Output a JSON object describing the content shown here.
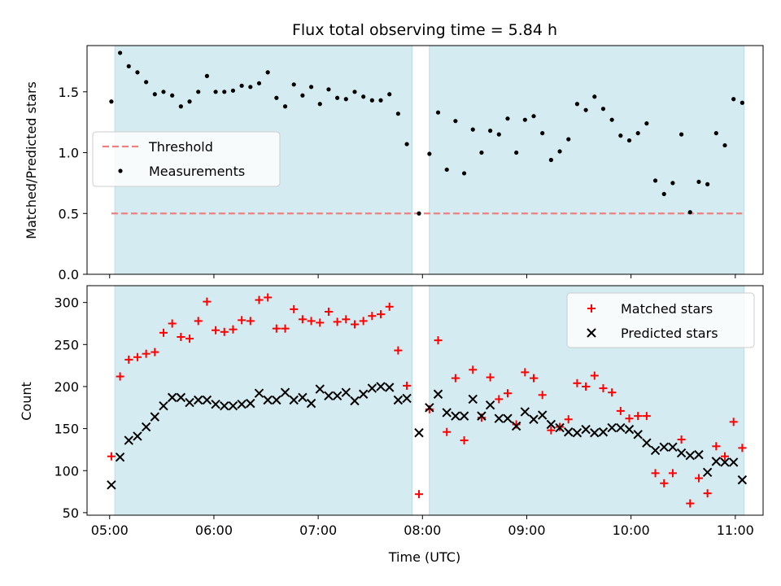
{
  "chart_data": {
    "title": "Flux total observing time = 5.84 h",
    "xlabel": "Time (UTC)",
    "x_ticks": [
      "05:00",
      "06:00",
      "07:00",
      "08:00",
      "09:00",
      "10:00",
      "11:00"
    ],
    "x_range": [
      "04:47",
      "11:16"
    ],
    "observing_windows": [
      {
        "start": "05:03",
        "end": "07:54"
      },
      {
        "start": "08:04",
        "end": "11:05"
      }
    ],
    "colors": {
      "window": "#d4ebf1",
      "threshold": "#f08080",
      "measurements": "#000000",
      "matched": "#ff0000",
      "predicted": "#000000"
    },
    "panels": [
      {
        "type": "scatter",
        "ylabel": "Matched/Predicted stars",
        "ylim": [
          0,
          1.88
        ],
        "y_ticks": [
          "0.0",
          "0.5",
          "1.0",
          "1.5"
        ],
        "y_tick_values": [
          0,
          0.5,
          1.0,
          1.5
        ],
        "legend_position": "center-left",
        "threshold": {
          "name": "Threshold",
          "value": 0.5
        },
        "series": [
          {
            "name": "Measurements",
            "marker": "dot",
            "points": [
              [
                "05:01",
                1.42
              ],
              [
                "05:06",
                1.82
              ],
              [
                "05:11",
                1.71
              ],
              [
                "05:16",
                1.66
              ],
              [
                "05:21",
                1.58
              ],
              [
                "05:26",
                1.48
              ],
              [
                "05:31",
                1.5
              ],
              [
                "05:36",
                1.47
              ],
              [
                "05:41",
                1.38
              ],
              [
                "05:46",
                1.42
              ],
              [
                "05:51",
                1.5
              ],
              [
                "05:56",
                1.63
              ],
              [
                "06:01",
                1.5
              ],
              [
                "06:06",
                1.5
              ],
              [
                "06:11",
                1.51
              ],
              [
                "06:16",
                1.55
              ],
              [
                "06:21",
                1.54
              ],
              [
                "06:26",
                1.57
              ],
              [
                "06:31",
                1.66
              ],
              [
                "06:36",
                1.45
              ],
              [
                "06:41",
                1.38
              ],
              [
                "06:46",
                1.56
              ],
              [
                "06:51",
                1.47
              ],
              [
                "06:56",
                1.54
              ],
              [
                "07:01",
                1.4
              ],
              [
                "07:06",
                1.52
              ],
              [
                "07:11",
                1.45
              ],
              [
                "07:16",
                1.44
              ],
              [
                "07:21",
                1.5
              ],
              [
                "07:26",
                1.46
              ],
              [
                "07:31",
                1.43
              ],
              [
                "07:36",
                1.43
              ],
              [
                "07:41",
                1.48
              ],
              [
                "07:46",
                1.32
              ],
              [
                "07:51",
                1.07
              ],
              [
                "07:58",
                0.5
              ],
              [
                "08:04",
                0.99
              ],
              [
                "08:09",
                1.33
              ],
              [
                "08:14",
                0.86
              ],
              [
                "08:19",
                1.26
              ],
              [
                "08:24",
                0.83
              ],
              [
                "08:29",
                1.19
              ],
              [
                "08:34",
                1.0
              ],
              [
                "08:39",
                1.18
              ],
              [
                "08:44",
                1.15
              ],
              [
                "08:49",
                1.28
              ],
              [
                "08:54",
                1.0
              ],
              [
                "08:59",
                1.27
              ],
              [
                "09:04",
                1.3
              ],
              [
                "09:09",
                1.16
              ],
              [
                "09:14",
                0.94
              ],
              [
                "09:19",
                1.01
              ],
              [
                "09:24",
                1.11
              ],
              [
                "09:29",
                1.4
              ],
              [
                "09:34",
                1.35
              ],
              [
                "09:39",
                1.46
              ],
              [
                "09:44",
                1.36
              ],
              [
                "09:49",
                1.27
              ],
              [
                "09:54",
                1.14
              ],
              [
                "09:59",
                1.1
              ],
              [
                "10:04",
                1.16
              ],
              [
                "10:09",
                1.24
              ],
              [
                "10:14",
                0.77
              ],
              [
                "10:19",
                0.66
              ],
              [
                "10:24",
                0.75
              ],
              [
                "10:29",
                1.15
              ],
              [
                "10:34",
                0.51
              ],
              [
                "10:39",
                0.76
              ],
              [
                "10:44",
                0.74
              ],
              [
                "10:49",
                1.16
              ],
              [
                "10:54",
                1.06
              ],
              [
                "10:59",
                1.44
              ],
              [
                "11:04",
                1.41
              ]
            ]
          }
        ]
      },
      {
        "type": "scatter",
        "ylabel": "Count",
        "ylim": [
          47,
          320
        ],
        "y_ticks": [
          "50",
          "100",
          "150",
          "200",
          "250",
          "300"
        ],
        "y_tick_values": [
          50,
          100,
          150,
          200,
          250,
          300
        ],
        "legend_position": "upper-right",
        "series": [
          {
            "name": "Matched stars",
            "marker": "plus",
            "points": [
              [
                "05:01",
                117
              ],
              [
                "05:06",
                212
              ],
              [
                "05:11",
                232
              ],
              [
                "05:16",
                235
              ],
              [
                "05:21",
                239
              ],
              [
                "05:26",
                241
              ],
              [
                "05:31",
                264
              ],
              [
                "05:36",
                275
              ],
              [
                "05:41",
                259
              ],
              [
                "05:46",
                257
              ],
              [
                "05:51",
                278
              ],
              [
                "05:56",
                301
              ],
              [
                "06:01",
                267
              ],
              [
                "06:06",
                265
              ],
              [
                "06:11",
                268
              ],
              [
                "06:16",
                279
              ],
              [
                "06:21",
                278
              ],
              [
                "06:26",
                303
              ],
              [
                "06:31",
                306
              ],
              [
                "06:36",
                269
              ],
              [
                "06:41",
                269
              ],
              [
                "06:46",
                292
              ],
              [
                "06:51",
                280
              ],
              [
                "06:56",
                278
              ],
              [
                "07:01",
                276
              ],
              [
                "07:06",
                289
              ],
              [
                "07:11",
                277
              ],
              [
                "07:16",
                280
              ],
              [
                "07:21",
                274
              ],
              [
                "07:26",
                278
              ],
              [
                "07:31",
                284
              ],
              [
                "07:36",
                286
              ],
              [
                "07:41",
                295
              ],
              [
                "07:46",
                243
              ],
              [
                "07:51",
                201
              ],
              [
                "07:58",
                72
              ],
              [
                "08:04",
                173
              ],
              [
                "08:09",
                255
              ],
              [
                "08:14",
                146
              ],
              [
                "08:19",
                210
              ],
              [
                "08:24",
                136
              ],
              [
                "08:29",
                220
              ],
              [
                "08:34",
                163
              ],
              [
                "08:39",
                211
              ],
              [
                "08:44",
                185
              ],
              [
                "08:49",
                192
              ],
              [
                "08:54",
                155
              ],
              [
                "08:59",
                217
              ],
              [
                "09:04",
                210
              ],
              [
                "09:09",
                190
              ],
              [
                "09:14",
                148
              ],
              [
                "09:19",
                152
              ],
              [
                "09:24",
                161
              ],
              [
                "09:29",
                204
              ],
              [
                "09:34",
                200
              ],
              [
                "09:39",
                213
              ],
              [
                "09:44",
                198
              ],
              [
                "09:49",
                193
              ],
              [
                "09:54",
                171
              ],
              [
                "09:59",
                162
              ],
              [
                "10:04",
                165
              ],
              [
                "10:09",
                165
              ],
              [
                "10:14",
                97
              ],
              [
                "10:19",
                85
              ],
              [
                "10:24",
                97
              ],
              [
                "10:29",
                137
              ],
              [
                "10:34",
                61
              ],
              [
                "10:39",
                91
              ],
              [
                "10:44",
                73
              ],
              [
                "10:49",
                129
              ],
              [
                "10:54",
                117
              ],
              [
                "10:59",
                158
              ],
              [
                "11:04",
                127
              ]
            ]
          },
          {
            "name": "Predicted stars",
            "marker": "x",
            "points": [
              [
                "05:01",
                83
              ],
              [
                "05:06",
                116
              ],
              [
                "05:11",
                136
              ],
              [
                "05:16",
                141
              ],
              [
                "05:21",
                152
              ],
              [
                "05:26",
                164
              ],
              [
                "05:31",
                177
              ],
              [
                "05:36",
                187
              ],
              [
                "05:41",
                187
              ],
              [
                "05:46",
                181
              ],
              [
                "05:51",
                184
              ],
              [
                "05:56",
                184
              ],
              [
                "06:01",
                179
              ],
              [
                "06:06",
                177
              ],
              [
                "06:11",
                177
              ],
              [
                "06:16",
                179
              ],
              [
                "06:21",
                180
              ],
              [
                "06:26",
                192
              ],
              [
                "06:31",
                184
              ],
              [
                "06:36",
                184
              ],
              [
                "06:41",
                193
              ],
              [
                "06:46",
                184
              ],
              [
                "06:51",
                187
              ],
              [
                "06:56",
                180
              ],
              [
                "07:01",
                197
              ],
              [
                "07:06",
                189
              ],
              [
                "07:11",
                189
              ],
              [
                "07:16",
                193
              ],
              [
                "07:21",
                183
              ],
              [
                "07:26",
                191
              ],
              [
                "07:31",
                198
              ],
              [
                "07:36",
                200
              ],
              [
                "07:41",
                199
              ],
              [
                "07:46",
                184
              ],
              [
                "07:51",
                186
              ],
              [
                "07:58",
                145
              ],
              [
                "08:04",
                175
              ],
              [
                "08:09",
                191
              ],
              [
                "08:14",
                169
              ],
              [
                "08:19",
                165
              ],
              [
                "08:24",
                165
              ],
              [
                "08:29",
                185
              ],
              [
                "08:34",
                165
              ],
              [
                "08:39",
                178
              ],
              [
                "08:44",
                162
              ],
              [
                "08:49",
                162
              ],
              [
                "08:54",
                153
              ],
              [
                "08:59",
                170
              ],
              [
                "09:04",
                161
              ],
              [
                "09:09",
                166
              ],
              [
                "09:14",
                155
              ],
              [
                "09:19",
                151
              ],
              [
                "09:24",
                146
              ],
              [
                "09:29",
                145
              ],
              [
                "09:34",
                149
              ],
              [
                "09:39",
                145
              ],
              [
                "09:44",
                146
              ],
              [
                "09:49",
                151
              ],
              [
                "09:54",
                151
              ],
              [
                "09:59",
                149
              ],
              [
                "10:04",
                143
              ],
              [
                "10:09",
                133
              ],
              [
                "10:14",
                124
              ],
              [
                "10:19",
                128
              ],
              [
                "10:24",
                128
              ],
              [
                "10:29",
                121
              ],
              [
                "10:34",
                118
              ],
              [
                "10:39",
                119
              ],
              [
                "10:44",
                98
              ],
              [
                "10:49",
                111
              ],
              [
                "10:54",
                110
              ],
              [
                "10:59",
                110
              ],
              [
                "11:04",
                89
              ]
            ]
          }
        ]
      }
    ]
  }
}
